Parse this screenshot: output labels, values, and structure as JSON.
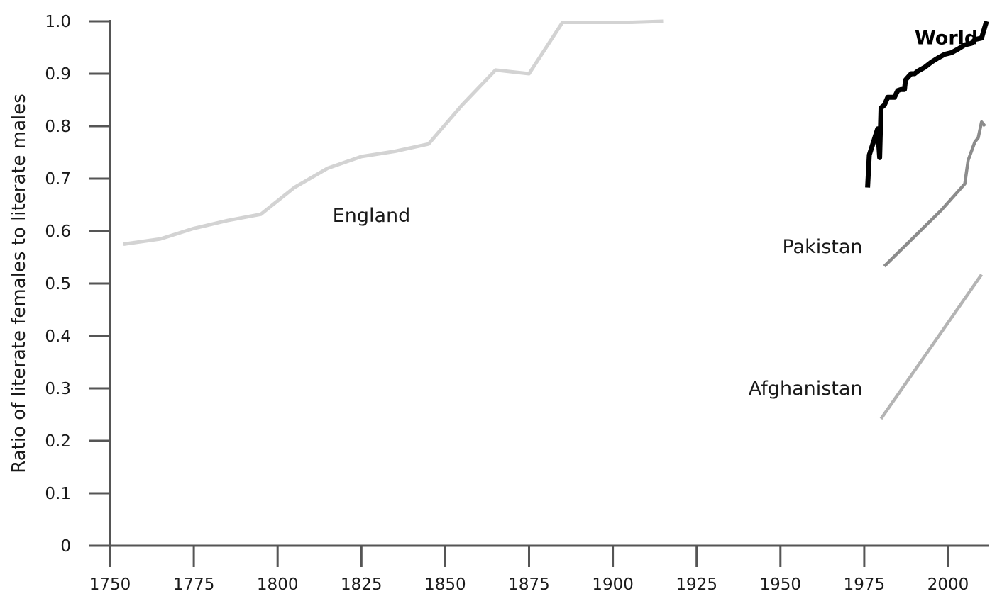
{
  "chart_data": {
    "type": "line",
    "title": "",
    "xlabel": "",
    "ylabel": "Ratio of literate females to literate males",
    "xlim": [
      1750,
      2015
    ],
    "ylim": [
      0,
      1.0
    ],
    "grid": false,
    "legend": "none",
    "x_ticks": [
      1750,
      1775,
      1800,
      1825,
      1850,
      1875,
      1900,
      1925,
      1950,
      1975,
      2000
    ],
    "x_tick_labels": [
      "1750",
      "1775",
      "1800",
      "1825",
      "1850",
      "1875",
      "1900",
      "1925",
      "1950",
      "1975",
      "2000"
    ],
    "y_ticks": [
      0,
      0.1,
      0.2,
      0.3,
      0.4,
      0.5,
      0.6,
      0.7,
      0.8,
      0.9,
      1.0
    ],
    "y_tick_labels": [
      "0",
      "0.1",
      "0.2",
      "0.3",
      "0.4",
      "0.5",
      "0.6",
      "0.7",
      "0.8",
      "0.9",
      "1.0"
    ],
    "series": [
      {
        "name": "England",
        "color": "#d3d3d3",
        "weight": "light",
        "label_year": 1828,
        "label_value": 0.63,
        "label_anchor": "middle",
        "points": [
          [
            1754,
            0.575
          ],
          [
            1765,
            0.585
          ],
          [
            1775,
            0.605
          ],
          [
            1785,
            0.62
          ],
          [
            1795,
            0.632
          ],
          [
            1805,
            0.683
          ],
          [
            1815,
            0.72
          ],
          [
            1825,
            0.742
          ],
          [
            1835,
            0.752
          ],
          [
            1845,
            0.766
          ],
          [
            1855,
            0.84
          ],
          [
            1865,
            0.907
          ],
          [
            1875,
            0.9
          ],
          [
            1885,
            0.998
          ],
          [
            1895,
            0.998
          ],
          [
            1905,
            0.998
          ],
          [
            1915,
            1.0
          ]
        ]
      },
      {
        "name": "World",
        "color": "#000000",
        "weight": "bold",
        "label_year": 1999.5,
        "label_value": 0.968,
        "label_anchor": "middle",
        "points": [
          [
            1976,
            0.683
          ],
          [
            1976.5,
            0.745
          ],
          [
            1978,
            0.775
          ],
          [
            1979,
            0.795
          ],
          [
            1979.6,
            0.74
          ],
          [
            1980,
            0.835
          ],
          [
            1981,
            0.84
          ],
          [
            1982,
            0.855
          ],
          [
            1984,
            0.855
          ],
          [
            1985,
            0.868
          ],
          [
            1986,
            0.87
          ],
          [
            1987,
            0.87
          ],
          [
            1987.3,
            0.888
          ],
          [
            1988,
            0.893
          ],
          [
            1989,
            0.9
          ],
          [
            1990,
            0.9
          ],
          [
            1991,
            0.905
          ],
          [
            1993,
            0.912
          ],
          [
            1995,
            0.922
          ],
          [
            1997,
            0.93
          ],
          [
            1999,
            0.937
          ],
          [
            2001,
            0.94
          ],
          [
            2003,
            0.947
          ],
          [
            2005,
            0.955
          ],
          [
            2007,
            0.958
          ],
          [
            2008,
            0.965
          ],
          [
            2010,
            0.968
          ],
          [
            2011,
            0.99
          ],
          [
            2011.5,
            1.0
          ]
        ]
      },
      {
        "name": "Pakistan",
        "color": "#8c8c8c",
        "weight": "medium",
        "label_year": 1974.5,
        "label_value": 0.57,
        "label_anchor": "end",
        "points": [
          [
            1981,
            0.533
          ],
          [
            1998,
            0.64
          ],
          [
            2005,
            0.69
          ],
          [
            2006,
            0.735
          ],
          [
            2008,
            0.77
          ],
          [
            2009,
            0.778
          ],
          [
            2010,
            0.808
          ],
          [
            2011,
            0.8
          ]
        ]
      },
      {
        "name": "Afghanistan",
        "color": "#b4b4b4",
        "weight": "medium",
        "label_year": 1974.5,
        "label_value": 0.3,
        "label_anchor": "end",
        "points": [
          [
            1980,
            0.242
          ],
          [
            2010,
            0.517
          ]
        ]
      }
    ]
  }
}
